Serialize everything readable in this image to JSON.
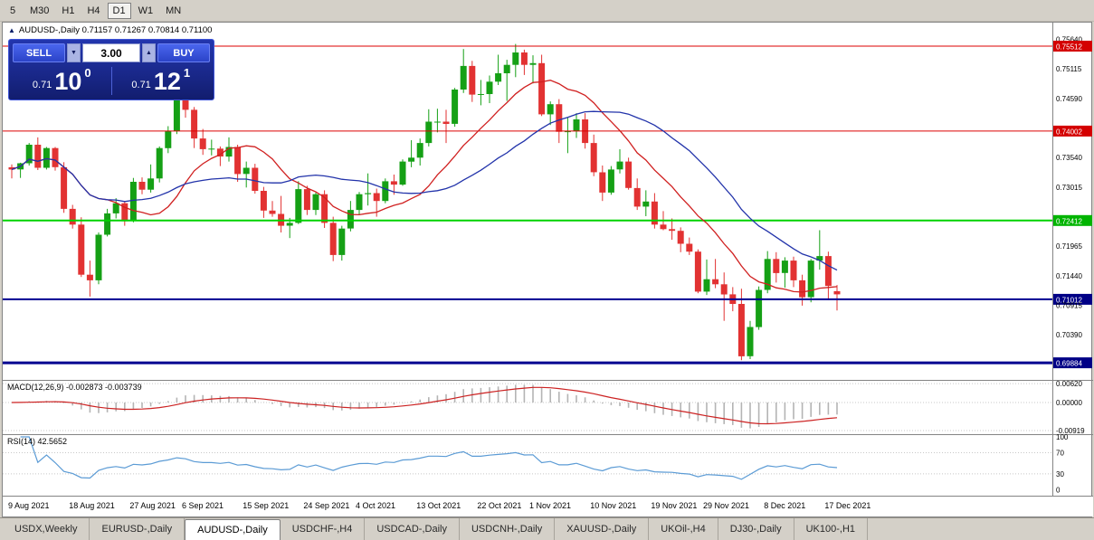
{
  "colors": {
    "chrome": "#d4d0c8",
    "pane_border": "#848484",
    "bull": "#15a015",
    "bear": "#e23232",
    "ma_fast": "#d02020",
    "ma_slow": "#2233aa",
    "macd_hist": "#b4b4b4",
    "macd_signal": "#cc2222",
    "rsi_line": "#5b9bd5",
    "dotted_grid": "#c8c8c8",
    "badge_red": "#d40000",
    "badge_green": "#00b400",
    "badge_navy": "#000086"
  },
  "toolbar": {
    "timeframes": [
      "5",
      "M30",
      "H1",
      "H4",
      "D1",
      "W1",
      "MN"
    ],
    "active": "D1"
  },
  "chart_header": {
    "icon": "▲",
    "title": "AUDUSD-,Daily 0.71157 0.71267 0.70814 0.71100"
  },
  "trade_panel": {
    "sell_label": "SELL",
    "buy_label": "BUY",
    "volume": "3.00",
    "spin_down": "▼",
    "spin_up": "▲",
    "sell_price": {
      "prefix": "0.71",
      "big": "10",
      "sup": "0"
    },
    "buy_price": {
      "prefix": "0.71",
      "big": "12",
      "sup": "1"
    }
  },
  "price_axis": {
    "ticks": [
      {
        "label": "0.75640",
        "value": 0.7564
      },
      {
        "label": "0.75512",
        "value": 0.75512,
        "badge": "#d40000"
      },
      {
        "label": "0.75115",
        "value": 0.75115
      },
      {
        "label": "0.74590",
        "value": 0.7459
      },
      {
        "label": "0.74002",
        "value": 0.74002,
        "badge": "#d40000"
      },
      {
        "label": "0.73540",
        "value": 0.7354
      },
      {
        "label": "0.73015",
        "value": 0.73015
      },
      {
        "label": "0.72412",
        "value": 0.72412,
        "badge": "#00b400"
      },
      {
        "label": "0.71965",
        "value": 0.71965
      },
      {
        "label": "0.71440",
        "value": 0.7144
      },
      {
        "label": "0.71012",
        "value": 0.71012,
        "badge": "#000086"
      },
      {
        "label": "0.70915",
        "value": 0.70915
      },
      {
        "label": "0.70390",
        "value": 0.7039
      },
      {
        "label": "0.69884",
        "value": 0.69884,
        "badge": "#000086"
      }
    ]
  },
  "hlines": [
    {
      "value": 0.75512,
      "color": "#dd0000",
      "width": 1
    },
    {
      "value": 0.74002,
      "color": "#dd0000",
      "width": 1
    },
    {
      "value": 0.72412,
      "color": "#00d200",
      "width": 2
    },
    {
      "value": 0.71012,
      "color": "#000090",
      "width": 2
    },
    {
      "value": 0.69884,
      "color": "#000090",
      "width": 3
    }
  ],
  "macd_panel": {
    "label": "MACD(12,26,9) -0.002873 -0.003739",
    "params": [
      12,
      26,
      9
    ],
    "ticks": [
      {
        "label": "0.00620",
        "value": 0.0062
      },
      {
        "label": "0.00000",
        "value": 0.0
      },
      {
        "label": "-0.00919",
        "value": -0.00919
      }
    ]
  },
  "rsi_panel": {
    "label": "RSI(14) 42.5652",
    "period": 14,
    "current": 42.5652,
    "ticks": [
      {
        "label": "100",
        "value": 100
      },
      {
        "label": "70",
        "value": 70,
        "dotted": true
      },
      {
        "label": "30",
        "value": 30,
        "dotted": true
      },
      {
        "label": "0",
        "value": 0
      }
    ]
  },
  "time_axis": [
    {
      "index": 0,
      "label": "9 Aug 2021"
    },
    {
      "index": 7,
      "label": "18 Aug 2021"
    },
    {
      "index": 14,
      "label": "27 Aug 2021"
    },
    {
      "index": 20,
      "label": "6 Sep 2021"
    },
    {
      "index": 27,
      "label": "15 Sep 2021"
    },
    {
      "index": 34,
      "label": "24 Sep 2021"
    },
    {
      "index": 40,
      "label": "4 Oct 2021"
    },
    {
      "index": 47,
      "label": "13 Oct 2021"
    },
    {
      "index": 54,
      "label": "22 Oct 2021"
    },
    {
      "index": 60,
      "label": "1 Nov 2021"
    },
    {
      "index": 67,
      "label": "10 Nov 2021"
    },
    {
      "index": 74,
      "label": "19 Nov 2021"
    },
    {
      "index": 80,
      "label": "29 Nov 2021"
    },
    {
      "index": 87,
      "label": "8 Dec 2021"
    },
    {
      "index": 94,
      "label": "17 Dec 2021"
    }
  ],
  "tabs": {
    "items": [
      "USDX,Weekly",
      "EURUSD-,Daily",
      "AUDUSD-,Daily",
      "USDCHF-,H4",
      "USDCAD-,Daily",
      "USDCNH-,Daily",
      "XAUUSD-,Daily",
      "UKOil-,H4",
      "DJ30-,Daily",
      "UK100-,H1"
    ],
    "active": "AUDUSD-,Daily"
  },
  "chart_data": {
    "type": "candlestick",
    "symbol": "AUDUSD",
    "timeframe": "Daily",
    "current_ohlc": {
      "open": 0.71157,
      "high": 0.71267,
      "low": 0.70814,
      "close": 0.711
    },
    "price_axis_range": {
      "top": 0.7593,
      "bottom": 0.6958
    },
    "ma_fast_period": 12,
    "ma_slow_period": 24,
    "candles": [
      [
        0.7336,
        0.7341,
        0.7316,
        0.7332
      ],
      [
        0.7332,
        0.7344,
        0.7317,
        0.7343
      ],
      [
        0.7343,
        0.7379,
        0.7339,
        0.7376
      ],
      [
        0.7376,
        0.7389,
        0.7331,
        0.7335
      ],
      [
        0.7335,
        0.7372,
        0.7332,
        0.737
      ],
      [
        0.737,
        0.7372,
        0.733,
        0.7336
      ],
      [
        0.7336,
        0.7345,
        0.7255,
        0.7262
      ],
      [
        0.7262,
        0.7269,
        0.7227,
        0.7234
      ],
      [
        0.7234,
        0.7247,
        0.7141,
        0.7145
      ],
      [
        0.7145,
        0.717,
        0.7106,
        0.7135
      ],
      [
        0.7135,
        0.722,
        0.7128,
        0.7216
      ],
      [
        0.7216,
        0.7262,
        0.7213,
        0.7254
      ],
      [
        0.7254,
        0.7281,
        0.7245,
        0.7272
      ],
      [
        0.7272,
        0.7276,
        0.7232,
        0.724
      ],
      [
        0.724,
        0.7317,
        0.7238,
        0.731
      ],
      [
        0.731,
        0.7318,
        0.7288,
        0.7296
      ],
      [
        0.7296,
        0.7341,
        0.7291,
        0.7316
      ],
      [
        0.7316,
        0.7373,
        0.7309,
        0.737
      ],
      [
        0.737,
        0.7409,
        0.7361,
        0.74
      ],
      [
        0.74,
        0.7464,
        0.7395,
        0.7455
      ],
      [
        0.7455,
        0.7462,
        0.7424,
        0.7438
      ],
      [
        0.7438,
        0.7443,
        0.737,
        0.7387
      ],
      [
        0.7387,
        0.7404,
        0.7358,
        0.7368
      ],
      [
        0.7368,
        0.7385,
        0.7357,
        0.7369
      ],
      [
        0.7369,
        0.7373,
        0.7338,
        0.7355
      ],
      [
        0.7355,
        0.7389,
        0.7346,
        0.7372
      ],
      [
        0.7372,
        0.7376,
        0.731,
        0.7324
      ],
      [
        0.7324,
        0.7346,
        0.73,
        0.7335
      ],
      [
        0.7335,
        0.7342,
        0.7289,
        0.7294
      ],
      [
        0.7294,
        0.7301,
        0.7246,
        0.7259
      ],
      [
        0.7259,
        0.7276,
        0.7248,
        0.7253
      ],
      [
        0.7253,
        0.7285,
        0.722,
        0.7232
      ],
      [
        0.7232,
        0.7246,
        0.721,
        0.7237
      ],
      [
        0.7237,
        0.7311,
        0.7235,
        0.7297
      ],
      [
        0.7297,
        0.7303,
        0.7251,
        0.726
      ],
      [
        0.726,
        0.7291,
        0.7251,
        0.7288
      ],
      [
        0.7288,
        0.7295,
        0.7228,
        0.7237
      ],
      [
        0.7237,
        0.7248,
        0.7169,
        0.718
      ],
      [
        0.718,
        0.7232,
        0.717,
        0.7227
      ],
      [
        0.7227,
        0.7276,
        0.7222,
        0.726
      ],
      [
        0.726,
        0.7292,
        0.7252,
        0.7288
      ],
      [
        0.7288,
        0.7325,
        0.7268,
        0.729
      ],
      [
        0.729,
        0.7298,
        0.7248,
        0.7276
      ],
      [
        0.7276,
        0.7316,
        0.7272,
        0.7311
      ],
      [
        0.7311,
        0.7323,
        0.7287,
        0.7305
      ],
      [
        0.7305,
        0.735,
        0.7303,
        0.7346
      ],
      [
        0.7346,
        0.7384,
        0.7336,
        0.7353
      ],
      [
        0.7353,
        0.7387,
        0.7339,
        0.7379
      ],
      [
        0.7379,
        0.7439,
        0.7373,
        0.7417
      ],
      [
        0.7417,
        0.744,
        0.7398,
        0.7417
      ],
      [
        0.7417,
        0.7438,
        0.7379,
        0.7413
      ],
      [
        0.7413,
        0.7477,
        0.7408,
        0.7474
      ],
      [
        0.7474,
        0.7546,
        0.7468,
        0.7516
      ],
      [
        0.7516,
        0.7525,
        0.7452,
        0.7465
      ],
      [
        0.7465,
        0.7491,
        0.7446,
        0.7466
      ],
      [
        0.7466,
        0.7499,
        0.745,
        0.7488
      ],
      [
        0.7488,
        0.7536,
        0.7482,
        0.7503
      ],
      [
        0.7503,
        0.7527,
        0.7454,
        0.7518
      ],
      [
        0.7518,
        0.7555,
        0.7496,
        0.754
      ],
      [
        0.754,
        0.7545,
        0.75,
        0.7518
      ],
      [
        0.7518,
        0.7535,
        0.7485,
        0.7521
      ],
      [
        0.7521,
        0.7536,
        0.7427,
        0.743
      ],
      [
        0.743,
        0.7453,
        0.7411,
        0.7448
      ],
      [
        0.7448,
        0.7457,
        0.7379,
        0.7399
      ],
      [
        0.7399,
        0.7425,
        0.7361,
        0.74
      ],
      [
        0.74,
        0.7432,
        0.7388,
        0.7421
      ],
      [
        0.7421,
        0.7432,
        0.7369,
        0.7379
      ],
      [
        0.7379,
        0.7394,
        0.732,
        0.7327
      ],
      [
        0.7327,
        0.7339,
        0.7276,
        0.7291
      ],
      [
        0.7291,
        0.7338,
        0.7287,
        0.7332
      ],
      [
        0.7332,
        0.7368,
        0.7325,
        0.7346
      ],
      [
        0.7346,
        0.7353,
        0.7296,
        0.7299
      ],
      [
        0.7299,
        0.7316,
        0.726,
        0.7266
      ],
      [
        0.7266,
        0.7295,
        0.7249,
        0.7275
      ],
      [
        0.7275,
        0.729,
        0.7227,
        0.7234
      ],
      [
        0.7234,
        0.7258,
        0.7224,
        0.7226
      ],
      [
        0.7226,
        0.7245,
        0.7207,
        0.7223
      ],
      [
        0.7223,
        0.7229,
        0.7185,
        0.72
      ],
      [
        0.72,
        0.7211,
        0.718,
        0.7186
      ],
      [
        0.7186,
        0.719,
        0.7112,
        0.7115
      ],
      [
        0.7115,
        0.7172,
        0.7109,
        0.7137
      ],
      [
        0.7137,
        0.7173,
        0.7121,
        0.7128
      ],
      [
        0.7128,
        0.7149,
        0.7063,
        0.711
      ],
      [
        0.711,
        0.7123,
        0.708,
        0.7093
      ],
      [
        0.7093,
        0.712,
        0.6993,
        0.7
      ],
      [
        0.7,
        0.7063,
        0.6995,
        0.7052
      ],
      [
        0.7052,
        0.7124,
        0.7047,
        0.7118
      ],
      [
        0.7118,
        0.7187,
        0.7112,
        0.7173
      ],
      [
        0.7173,
        0.7185,
        0.7131,
        0.7148
      ],
      [
        0.7148,
        0.7176,
        0.7122,
        0.717
      ],
      [
        0.717,
        0.7177,
        0.7123,
        0.7135
      ],
      [
        0.7135,
        0.7145,
        0.709,
        0.7105
      ],
      [
        0.7105,
        0.7173,
        0.7096,
        0.717
      ],
      [
        0.717,
        0.7224,
        0.7154,
        0.7178
      ],
      [
        0.7178,
        0.7186,
        0.71,
        0.7125
      ],
      [
        0.71157,
        0.71267,
        0.70814,
        0.711
      ]
    ]
  }
}
